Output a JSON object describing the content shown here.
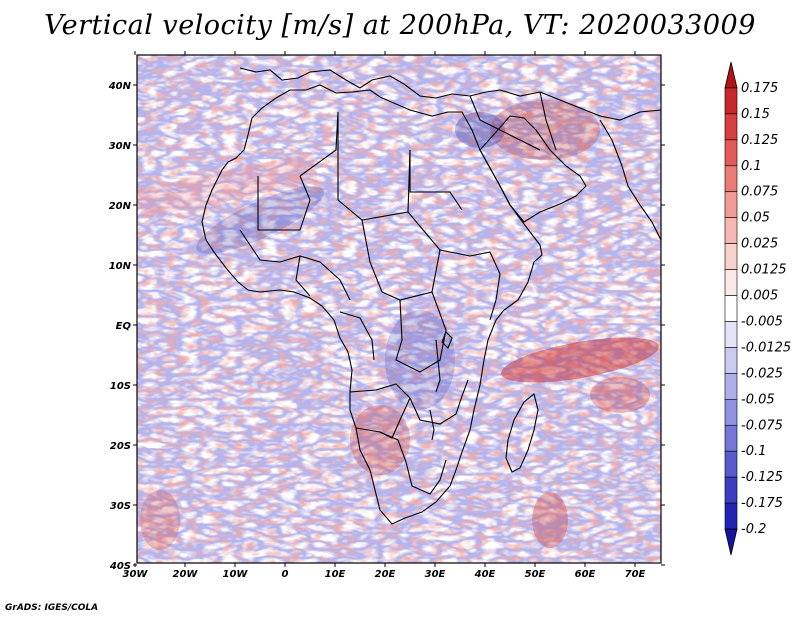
{
  "title": "Vertical velocity [m/s] at 200hPa, VT: 2020033009",
  "footer": "GrADS: IGES/COLA",
  "map": {
    "lon_labels": [
      "30W",
      "20W",
      "10W",
      "0",
      "10E",
      "20E",
      "30E",
      "40E",
      "50E",
      "60E",
      "70E"
    ],
    "lat_labels": [
      "40N",
      "30N",
      "20N",
      "10N",
      "EQ",
      "10S",
      "20S",
      "30S",
      "40S"
    ]
  },
  "colorbar": {
    "levels": [
      {
        "label": "0.175",
        "color": "#b31217"
      },
      {
        "label": "0.15",
        "color": "#c8282b"
      },
      {
        "label": "0.125",
        "color": "#d83e3e"
      },
      {
        "label": "0.1",
        "color": "#e35a58"
      },
      {
        "label": "0.075",
        "color": "#ec7a76"
      },
      {
        "label": "0.05",
        "color": "#f29a96"
      },
      {
        "label": "0.025",
        "color": "#f6b8b4"
      },
      {
        "label": "0.0125",
        "color": "#f9d2cf"
      },
      {
        "label": "0.005",
        "color": "#fce8e6"
      },
      {
        "label": "-0.005",
        "color": "#ffffff"
      },
      {
        "label": "-0.0125",
        "color": "#e4e4f8"
      },
      {
        "label": "-0.025",
        "color": "#cacaf2"
      },
      {
        "label": "-0.05",
        "color": "#aeaeea"
      },
      {
        "label": "-0.075",
        "color": "#9292e2"
      },
      {
        "label": "-0.1",
        "color": "#7676d8"
      },
      {
        "label": "-0.125",
        "color": "#5a5ace"
      },
      {
        "label": "-0.175",
        "color": "#3d3dc2"
      },
      {
        "label": "-0.2",
        "color": "#2424b4"
      }
    ],
    "bottom_color": "#1414a0"
  }
}
